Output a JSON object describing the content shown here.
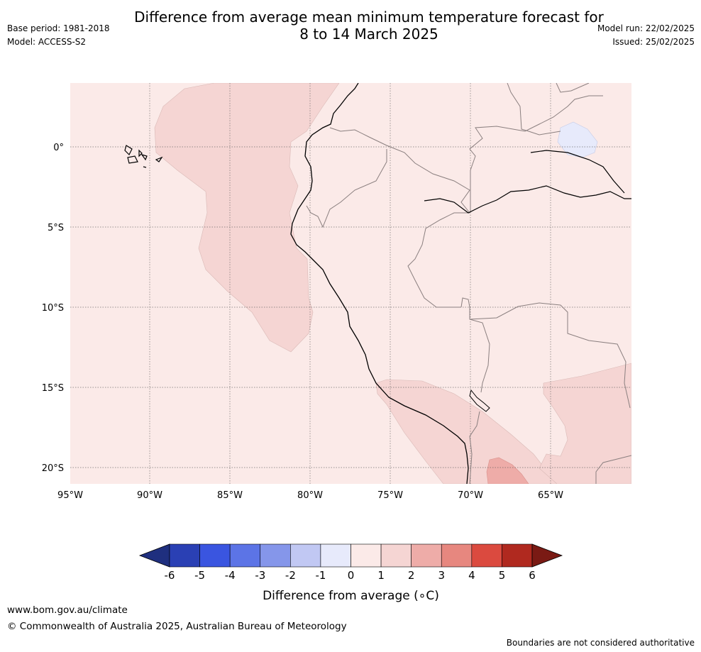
{
  "header": {
    "title_line1": "Difference from average mean minimum temperature forecast for",
    "title_line2": "8 to 14 March 2025",
    "base_period": "Base period: 1981-2018",
    "model": "Model: ACCESS-S2",
    "model_run": "Model run: 22/02/2025",
    "issued": "Issued: 25/02/2025"
  },
  "map": {
    "lat_labels": [
      "0°",
      "5°S",
      "10°S",
      "15°S",
      "20°S"
    ],
    "lon_labels": [
      "95°W",
      "90°W",
      "85°W",
      "80°W",
      "75°W",
      "70°W",
      "65°W"
    ],
    "background_category": "0 to 1",
    "extent": {
      "lon_min": -95,
      "lon_max": -60,
      "lat_min": -21,
      "lat_max": 4
    }
  },
  "colorbar": {
    "ticks": [
      "-6",
      "-5",
      "-4",
      "-3",
      "-2",
      "-1",
      "0",
      "1",
      "2",
      "3",
      "4",
      "5",
      "6"
    ],
    "colors": [
      "#1f2f7f",
      "#2a40b4",
      "#3a55e0",
      "#5c74e6",
      "#8596ea",
      "#c1c8f3",
      "#e7eafb",
      "#fbeae8",
      "#f5d5d3",
      "#eeaca8",
      "#e7877f",
      "#db4a3f",
      "#b0291f",
      "#7a1a14"
    ],
    "label": "Difference from average (∘C)"
  },
  "footer": {
    "url": "www.bom.gov.au/climate",
    "copyright": "© Commonwealth of Australia 2025, Australian Bureau of Meteorology",
    "disclaimer": "Boundaries are not considered authoritative"
  }
}
